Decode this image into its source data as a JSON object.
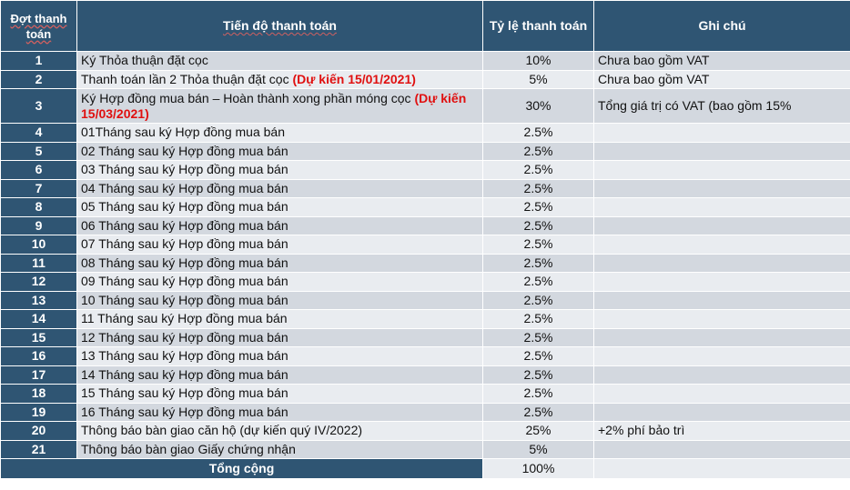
{
  "headers": {
    "col1": "Đợt thanh toán",
    "col2": "Tiến độ thanh toán",
    "col3": "Tỷ lệ thanh toán",
    "col4": "Ghi chú"
  },
  "rows": [
    {
      "num": "1",
      "desc": "Ký Thỏa thuận đặt cọc",
      "desc_red": "",
      "rate": "10%",
      "note": "Chưa bao gồm VAT"
    },
    {
      "num": "2",
      "desc": "Thanh toán lần 2 Thỏa thuận đặt cọc ",
      "desc_red": "(Dự kiến 15/01/2021)",
      "rate": "5%",
      "note": "Chưa bao gồm VAT"
    },
    {
      "num": "3",
      "desc": "Ký Hợp đồng mua bán – Hoàn thành xong phần móng cọc ",
      "desc_red": "(Dự kiến 15/03/2021)",
      "rate": "30%",
      "note": "Tổng giá trị có VAT (bao gồm 15%"
    },
    {
      "num": "4",
      "desc": "01Tháng sau ký Hợp đồng mua bán",
      "desc_red": "",
      "rate": "2.5%",
      "note": ""
    },
    {
      "num": "5",
      "desc": "02 Tháng sau ký Hợp đồng mua bán",
      "desc_red": "",
      "rate": "2.5%",
      "note": ""
    },
    {
      "num": "6",
      "desc": "03 Tháng sau ký Hợp đồng mua bán",
      "desc_red": "",
      "rate": "2.5%",
      "note": ""
    },
    {
      "num": "7",
      "desc": "04 Tháng sau ký Hợp đồng mua bán",
      "desc_red": "",
      "rate": "2.5%",
      "note": ""
    },
    {
      "num": "8",
      "desc": "05 Tháng sau ký Hợp đồng mua bán",
      "desc_red": "",
      "rate": "2.5%",
      "note": ""
    },
    {
      "num": "9",
      "desc": "06 Tháng sau ký Hợp đồng mua bán",
      "desc_red": "",
      "rate": "2.5%",
      "note": ""
    },
    {
      "num": "10",
      "desc": "07 Tháng sau ký Hợp đồng mua bán",
      "desc_red": "",
      "rate": "2.5%",
      "note": ""
    },
    {
      "num": "11",
      "desc": "08 Tháng sau ký Hợp đồng mua bán",
      "desc_red": "",
      "rate": "2.5%",
      "note": ""
    },
    {
      "num": "12",
      "desc": "09 Tháng sau ký Hợp đồng mua bán",
      "desc_red": "",
      "rate": "2.5%",
      "note": ""
    },
    {
      "num": "13",
      "desc": "10 Tháng sau ký Hợp đồng mua bán",
      "desc_red": "",
      "rate": "2.5%",
      "note": ""
    },
    {
      "num": "14",
      "desc": "11 Tháng sau ký Hợp đồng mua bán",
      "desc_red": "",
      "rate": "2.5%",
      "note": ""
    },
    {
      "num": "15",
      "desc": "12 Tháng sau ký Hợp đồng mua bán",
      "desc_red": "",
      "rate": "2.5%",
      "note": ""
    },
    {
      "num": "16",
      "desc": "13 Tháng sau ký Hợp đồng mua bán",
      "desc_red": "",
      "rate": "2.5%",
      "note": ""
    },
    {
      "num": "17",
      "desc": "14 Tháng sau ký Hợp đồng mua bán",
      "desc_red": "",
      "rate": "2.5%",
      "note": ""
    },
    {
      "num": "18",
      "desc": "15 Tháng sau ký Hợp đồng mua bán",
      "desc_red": "",
      "rate": "2.5%",
      "note": ""
    },
    {
      "num": "19",
      "desc": "16 Tháng sau ký Hợp đồng mua bán",
      "desc_red": "",
      "rate": "2.5%",
      "note": ""
    },
    {
      "num": "20",
      "desc": "Thông báo bàn giao căn hộ (dự kiến quý IV/2022)",
      "desc_red": "",
      "rate": "25%",
      "note": "+2% phí bảo trì"
    },
    {
      "num": "21",
      "desc": "Thông báo bàn giao Giấy chứng nhận",
      "desc_red": "",
      "rate": "5%",
      "note": ""
    }
  ],
  "total": {
    "label": "Tổng cộng",
    "rate": "100%",
    "note": ""
  }
}
